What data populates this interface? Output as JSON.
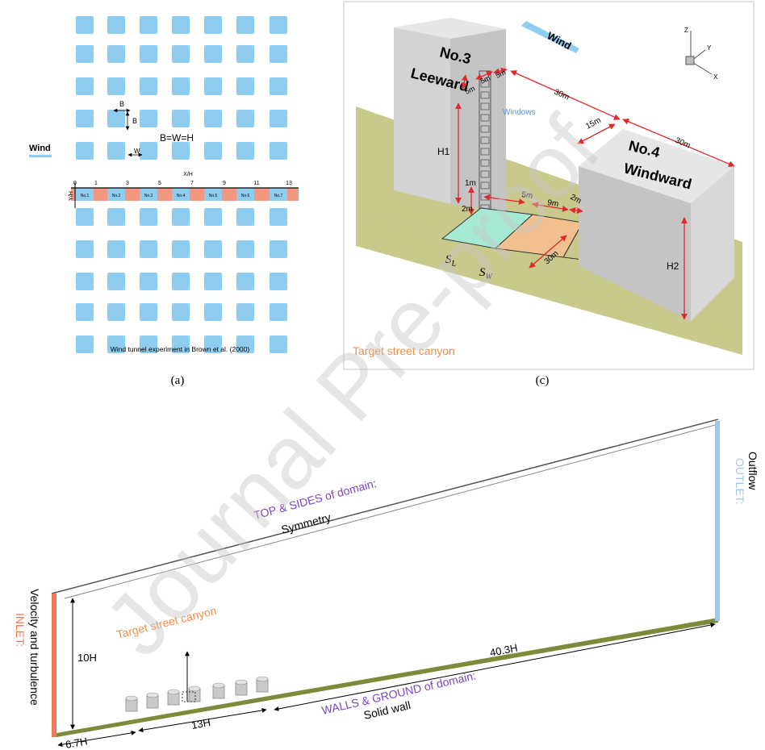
{
  "colors": {
    "block": "#8fcdf0",
    "strip_red": "#f4977f",
    "wall_face": "#d6d6d6",
    "wall_front": "#bdbdbd",
    "wall_top": "#e6e6e6",
    "ground": "#c8c98a",
    "green_zone": "#a6ead6",
    "orange_zone": "#f2c08f",
    "red_dim": "#e3262b",
    "purple_text": "#7a45c4",
    "orange_text": "#ef8e4a",
    "inlet_red": "#f07a58",
    "outlet_blue": "#9ec7ea",
    "ground_line": "#7e8a3a",
    "watermark": "#c8c8c8"
  },
  "panel_a": {
    "wind_label": "Wind",
    "b_label_top": "B",
    "b_label_side": "B",
    "bwh_label": "B=W=H",
    "w_label": "W",
    "xh_label": "X/H",
    "yh_label": "Y/H",
    "axis_ticks": [
      "0",
      "1",
      "3",
      "5",
      "7",
      "9",
      "11",
      "13"
    ],
    "block_tags": [
      "No.1",
      "No.2",
      "No.3",
      "No.4",
      "No.5",
      "No.6",
      "No.7"
    ],
    "caption": "Wind tunnel experiment in Brown et al. (2000)",
    "panel_letter": "(a)"
  },
  "panel_c": {
    "panel_letter": "(c)",
    "leeward_title_1": "No.3",
    "leeward_title_2": "Leeward",
    "windward_title_1": "No.4",
    "windward_title_2": "Windward",
    "wind_label": "Wind",
    "windows_label": "Windows",
    "dims": {
      "five_a": "5m",
      "five_b": "5m",
      "five_c": "5m",
      "thirty_top": "30m",
      "fifteen": "15m",
      "thirty_right": "30m",
      "h1": "H1",
      "one_m": "1m",
      "two_m": "2m",
      "five_street": "5m",
      "nine_street": "9m",
      "two_street": "2m",
      "thirty_street": "30m",
      "h2": "H2"
    },
    "sl_label": "S_L",
    "sw_label": "S_W",
    "target_label": "Target street canyon",
    "axis_z": "Z",
    "axis_y": "Y",
    "axis_x": "X"
  },
  "panel_b": {
    "top_line1": "TOP & SIDES of domain:",
    "top_line2": "Symmetry",
    "outlet_line1": "Outflow",
    "outlet_line2": "OUTLET:",
    "inlet_line1": "Velocity and turbulence",
    "inlet_line2": "INLET:",
    "height": "10H",
    "target_label": "Target street canyon",
    "len_total": "40.3H",
    "len_13": "13H",
    "len_67": "6.7H",
    "bottom_line1": "WALLS & GROUND of domain:",
    "bottom_line2": "Solid wall"
  },
  "watermark": "Journal Pre-proof"
}
